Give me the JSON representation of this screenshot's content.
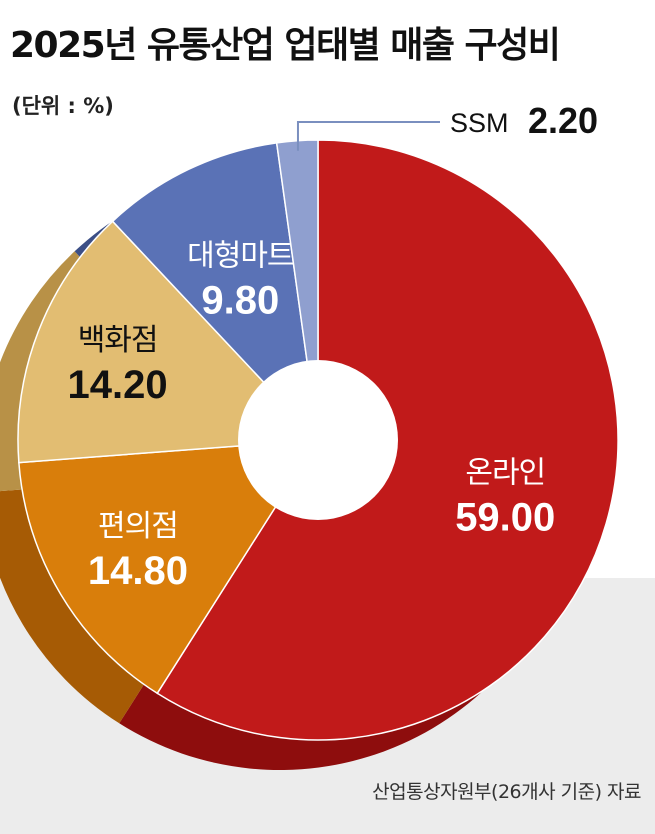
{
  "chart_data": {
    "type": "pie",
    "title": "2025년 유통산업 업태별 매출 구성비",
    "unit": "(단위 : %)",
    "categories": [
      "온라인",
      "편의점",
      "백화점",
      "대형마트",
      "SSM"
    ],
    "values": [
      59.0,
      14.8,
      14.2,
      9.8,
      2.2
    ],
    "value_labels": [
      "59.00",
      "14.80",
      "14.20",
      "9.80",
      "2.20"
    ],
    "colors": [
      "#c11a1a",
      "#d97e0b",
      "#e2bd72",
      "#5a72b6",
      "#8f9fcf"
    ],
    "side_colors": [
      "#8e0d0d",
      "#a65b05",
      "#b89147",
      "#3c4f86",
      "#6b7aa8"
    ],
    "label_colors": [
      "#ffffff",
      "#ffffff",
      "#111111",
      "#ffffff",
      "#111111"
    ],
    "donut": true,
    "source": "산업통상자원부(26개사 기준) 자료"
  }
}
